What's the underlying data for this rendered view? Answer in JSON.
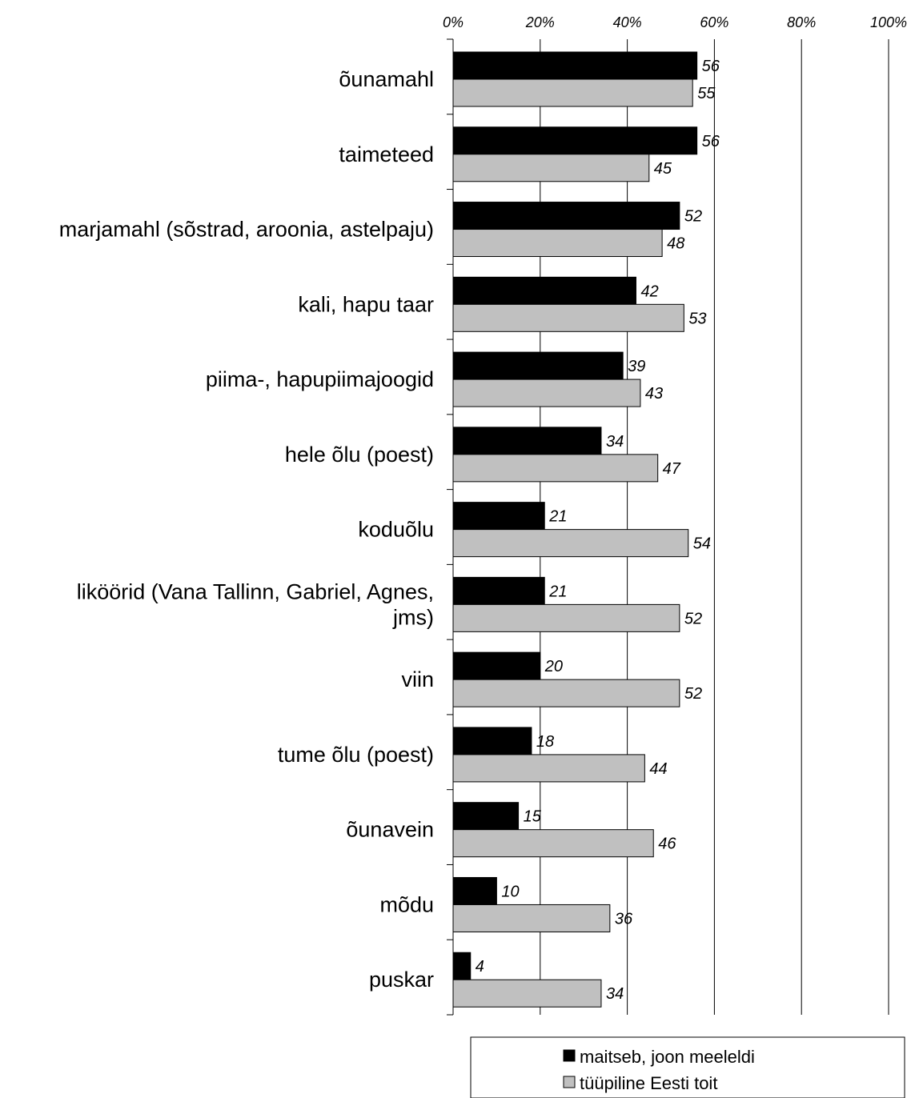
{
  "chart_data": {
    "type": "bar",
    "orientation": "horizontal",
    "categories": [
      "õunamahl",
      "taimeteed",
      "marjamahl (sõstrad, aroonia, astelpaju)",
      "kali, hapu taar",
      "piima-, hapupiimajoogid",
      "hele õlu (poest)",
      "koduõlu",
      [
        "liköörid (Vana Tallinn, Gabriel, Agnes,",
        "jms)"
      ],
      "viin",
      "tume õlu (poest)",
      "õunavein",
      "mõdu",
      "puskar"
    ],
    "series": [
      {
        "name": "maitseb, joon meeleldi",
        "color": "#000000",
        "values": [
          56,
          56,
          52,
          42,
          39,
          34,
          21,
          21,
          20,
          18,
          15,
          10,
          4
        ]
      },
      {
        "name": "tüüpiline Eesti toit",
        "color": "#c0c0c0",
        "values": [
          55,
          45,
          48,
          53,
          43,
          47,
          54,
          52,
          52,
          44,
          46,
          36,
          34
        ]
      }
    ],
    "xlim": [
      0,
      100
    ],
    "xticks": [
      "0%",
      "20%",
      "40%",
      "60%",
      "80%",
      "100%"
    ],
    "x_axis_position": "top",
    "grid": true,
    "legend_position": "bottom"
  }
}
